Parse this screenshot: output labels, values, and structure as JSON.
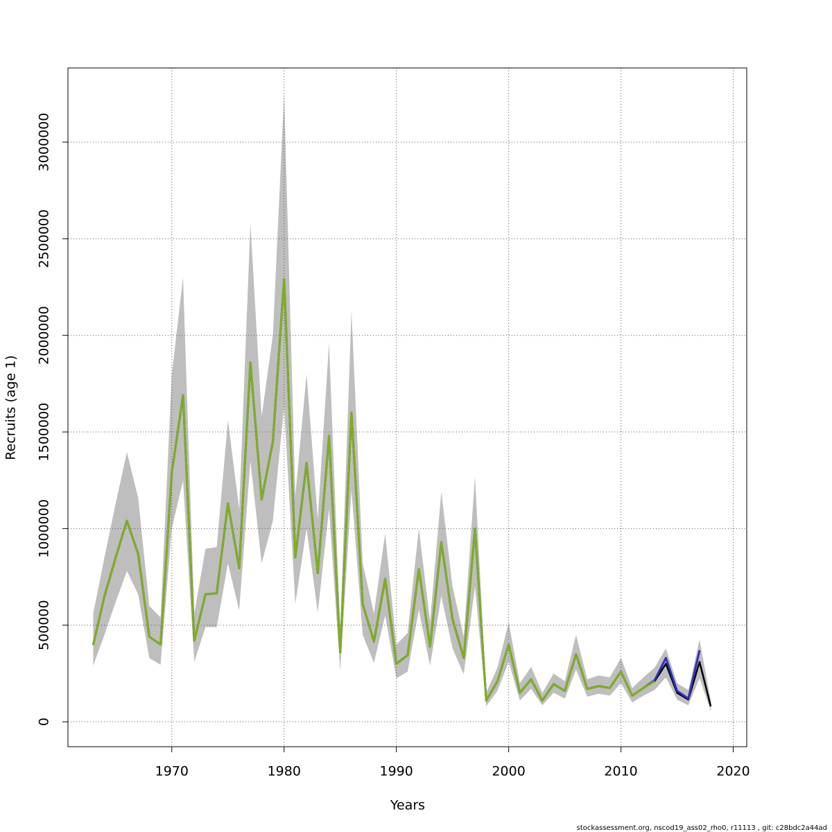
{
  "chart_data": {
    "type": "line",
    "x_label": "Years",
    "y_label": "Recruits (age 1)",
    "footer": "stockassessment.org, nscod19_ass02_rho0, r11113 , git: c28bdc2a44ad",
    "x": [
      1963,
      1964,
      1965,
      1966,
      1967,
      1968,
      1969,
      1970,
      1971,
      1972,
      1973,
      1974,
      1975,
      1976,
      1977,
      1978,
      1979,
      1980,
      1981,
      1982,
      1983,
      1984,
      1985,
      1986,
      1987,
      1988,
      1989,
      1990,
      1991,
      1992,
      1993,
      1994,
      1995,
      1996,
      1997,
      1998,
      1999,
      2000,
      2001,
      2002,
      2003,
      2004,
      2005,
      2006,
      2007,
      2008,
      2009,
      2010,
      2011,
      2012,
      2013,
      2014,
      2015,
      2016,
      2017,
      2018
    ],
    "band_color": "#bebebe",
    "upper": [
      560000,
      850000,
      1130000,
      1395000,
      1160000,
      600000,
      540000,
      1800000,
      2300000,
      560000,
      895000,
      905000,
      1560000,
      1100000,
      2580000,
      1580000,
      2000000,
      3250000,
      1170000,
      1800000,
      1050000,
      1960000,
      480000,
      2130000,
      820000,
      560000,
      975000,
      400000,
      460000,
      1000000,
      520000,
      1190000,
      700000,
      440000,
      1270000,
      150000,
      280000,
      515000,
      200000,
      285000,
      150000,
      250000,
      210000,
      450000,
      220000,
      240000,
      230000,
      330000,
      175000,
      230000,
      280000,
      380000,
      200000,
      165000,
      425000,
      110000
    ],
    "lower": [
      290000,
      450000,
      620000,
      780000,
      660000,
      330000,
      295000,
      1000000,
      1250000,
      310000,
      490000,
      490000,
      820000,
      575000,
      1350000,
      820000,
      1040000,
      1630000,
      610000,
      1000000,
      565000,
      1100000,
      265000,
      1200000,
      450000,
      305000,
      550000,
      225000,
      260000,
      580000,
      290000,
      650000,
      380000,
      245000,
      700000,
      80000,
      160000,
      310000,
      110000,
      170000,
      85000,
      150000,
      120000,
      270000,
      130000,
      145000,
      135000,
      200000,
      100000,
      135000,
      165000,
      230000,
      115000,
      85000,
      225000,
      55000
    ],
    "series": [
      {
        "color": "#000000",
        "values": [
          398000,
          650000,
          850000,
          1040000,
          870000,
          440000,
          400000,
          1290000,
          1690000,
          420000,
          660000,
          665000,
          1130000,
          795000,
          1860000,
          1150000,
          1450000,
          2290000,
          850000,
          1340000,
          770000,
          1480000,
          360000,
          1600000,
          610000,
          415000,
          740000,
          300000,
          345000,
          790000,
          390000,
          930000,
          530000,
          330000,
          1000000,
          110000,
          210000,
          400000,
          150000,
          220000,
          110000,
          195000,
          160000,
          350000,
          170000,
          185000,
          175000,
          260000,
          135000,
          175000,
          210000,
          300000,
          150000,
          115000,
          310000,
          80000
        ]
      },
      {
        "color": "#2e2eb8",
        "values": [
          398000,
          650000,
          850000,
          1040000,
          870000,
          440000,
          400000,
          1290000,
          1690000,
          420000,
          660000,
          665000,
          1130000,
          795000,
          1860000,
          1150000,
          1450000,
          2290000,
          850000,
          1340000,
          770000,
          1480000,
          360000,
          1600000,
          610000,
          415000,
          740000,
          300000,
          345000,
          790000,
          390000,
          930000,
          530000,
          330000,
          1000000,
          110000,
          210000,
          400000,
          150000,
          220000,
          110000,
          195000,
          160000,
          350000,
          170000,
          185000,
          175000,
          260000,
          135000,
          175000,
          215000,
          330000,
          160000,
          120000,
          370000,
          null
        ]
      },
      {
        "color": "#7fae1e",
        "values": [
          398000,
          650000,
          850000,
          1040000,
          870000,
          440000,
          400000,
          1290000,
          1690000,
          420000,
          660000,
          665000,
          1130000,
          795000,
          1860000,
          1150000,
          1450000,
          2290000,
          850000,
          1340000,
          770000,
          1480000,
          360000,
          1600000,
          610000,
          415000,
          740000,
          300000,
          345000,
          790000,
          390000,
          930000,
          530000,
          330000,
          1000000,
          110000,
          210000,
          400000,
          150000,
          220000,
          110000,
          195000,
          160000,
          350000,
          170000,
          185000,
          175000,
          260000,
          135000,
          175000,
          210000,
          null,
          null,
          null,
          null,
          null
        ]
      }
    ],
    "xlim": [
      1960.75,
      2021.2
    ],
    "ylim": [
      -129000,
      3384000
    ],
    "xticks": [
      1970,
      1980,
      1990,
      2000,
      2010,
      2020
    ],
    "yticks": [
      0,
      500000,
      1000000,
      1500000,
      2000000,
      2500000,
      3000000
    ],
    "grid": true
  }
}
